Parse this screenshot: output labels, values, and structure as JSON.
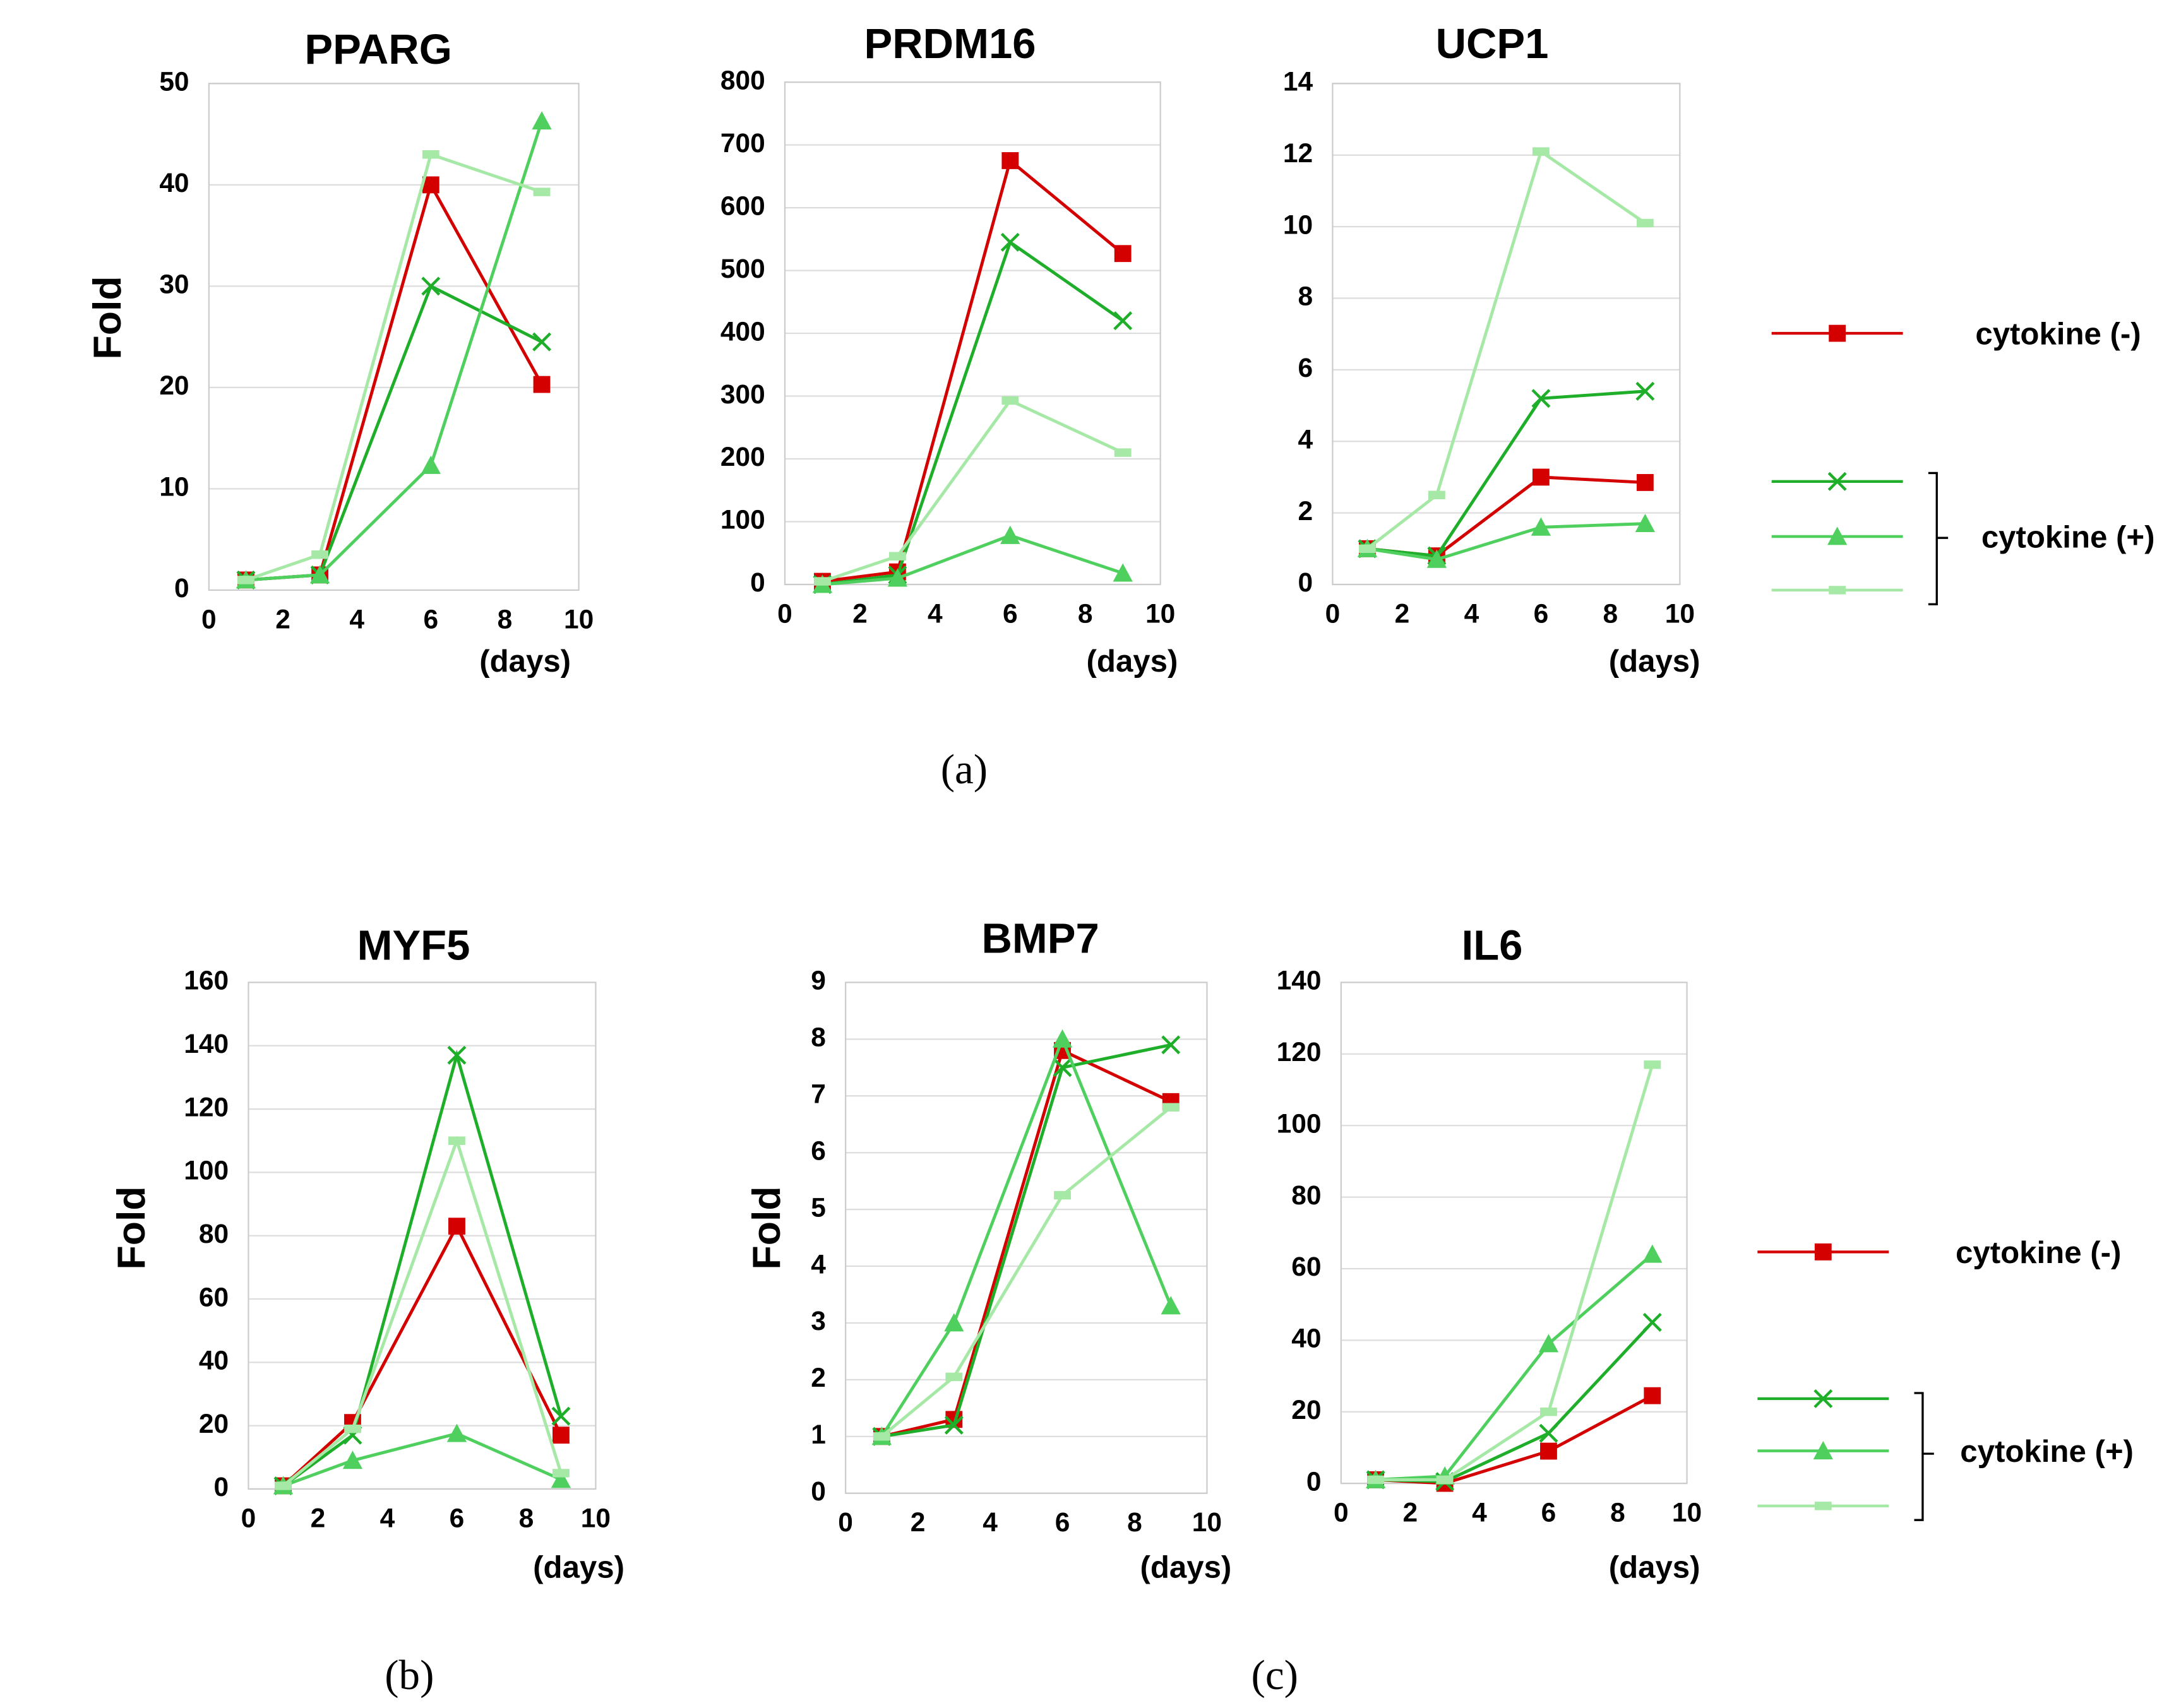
{
  "chart_data": [
    {
      "type": "line",
      "title": "PPARG",
      "ylabel": "Fold",
      "xlabel": "(days)",
      "x": [
        1,
        3,
        6,
        9
      ],
      "xlim": [
        0,
        10
      ],
      "xticks": [
        0,
        2,
        4,
        6,
        8,
        10
      ],
      "ylim": [
        0,
        50
      ],
      "yticks": [
        0,
        10,
        20,
        30,
        40,
        50
      ],
      "grid": true,
      "series": [
        {
          "color": "#d40000",
          "marker": "square",
          "values": [
            1,
            1.5,
            40,
            20.3
          ]
        },
        {
          "color": "#1fae2a",
          "marker": "x",
          "values": [
            1,
            1.5,
            30,
            24.5
          ]
        },
        {
          "color": "#4fd05e",
          "marker": "triangle",
          "values": [
            1,
            1.5,
            12.3,
            46.3
          ]
        },
        {
          "color": "#a6e8a6",
          "marker": "dash",
          "values": [
            1,
            3.5,
            43,
            39.3
          ]
        }
      ]
    },
    {
      "type": "line",
      "title": "PRDM16",
      "xlabel": "(days)",
      "x": [
        1,
        3,
        6,
        9
      ],
      "xlim": [
        0,
        10
      ],
      "xticks": [
        0,
        2,
        4,
        6,
        8,
        10
      ],
      "ylim": [
        0,
        800
      ],
      "yticks": [
        0,
        100,
        200,
        300,
        400,
        500,
        600,
        700,
        800
      ],
      "grid": true,
      "series": [
        {
          "color": "#d40000",
          "marker": "square",
          "values": [
            5,
            20,
            675,
            527
          ]
        },
        {
          "color": "#1fae2a",
          "marker": "x",
          "values": [
            0,
            15,
            545,
            420
          ]
        },
        {
          "color": "#4fd05e",
          "marker": "triangle",
          "values": [
            0,
            10,
            78,
            18
          ]
        },
        {
          "color": "#a6e8a6",
          "marker": "dash",
          "values": [
            5,
            45,
            293,
            210
          ]
        }
      ]
    },
    {
      "type": "line",
      "title": "UCP1",
      "xlabel": "(days)",
      "x": [
        1,
        3,
        6,
        9
      ],
      "xlim": [
        0,
        10
      ],
      "xticks": [
        0,
        2,
        4,
        6,
        8,
        10
      ],
      "ylim": [
        0,
        14
      ],
      "yticks": [
        0,
        2,
        4,
        6,
        8,
        10,
        12,
        14
      ],
      "grid": true,
      "series": [
        {
          "color": "#d40000",
          "marker": "square",
          "values": [
            1,
            0.8,
            3,
            2.85
          ]
        },
        {
          "color": "#1fae2a",
          "marker": "x",
          "values": [
            1,
            0.8,
            5.2,
            5.4
          ]
        },
        {
          "color": "#4fd05e",
          "marker": "triangle",
          "values": [
            1,
            0.7,
            1.6,
            1.7
          ]
        },
        {
          "color": "#a6e8a6",
          "marker": "dash",
          "values": [
            1,
            2.5,
            12.1,
            10.1
          ]
        }
      ]
    },
    {
      "type": "line",
      "title": "MYF5",
      "ylabel": "Fold",
      "xlabel": "(days)",
      "x": [
        1,
        3,
        6,
        9
      ],
      "xlim": [
        0,
        10
      ],
      "xticks": [
        0,
        2,
        4,
        6,
        8,
        10
      ],
      "ylim": [
        0,
        160
      ],
      "yticks": [
        0,
        20,
        40,
        60,
        80,
        100,
        120,
        140,
        160
      ],
      "grid": true,
      "series": [
        {
          "color": "#d40000",
          "marker": "square",
          "values": [
            1,
            21,
            83,
            17
          ]
        },
        {
          "color": "#1fae2a",
          "marker": "x",
          "values": [
            1,
            17,
            137,
            23
          ]
        },
        {
          "color": "#4fd05e",
          "marker": "triangle",
          "values": [
            1,
            9,
            17.5,
            3
          ]
        },
        {
          "color": "#a6e8a6",
          "marker": "dash",
          "values": [
            1,
            19,
            110,
            5
          ]
        }
      ]
    },
    {
      "type": "line",
      "title": "BMP7",
      "ylabel": "Fold",
      "xlabel": "(days)",
      "x": [
        1,
        3,
        6,
        9
      ],
      "xlim": [
        0,
        10
      ],
      "xticks": [
        0,
        2,
        4,
        6,
        8,
        10
      ],
      "ylim": [
        0,
        9
      ],
      "yticks": [
        0,
        1,
        2,
        3,
        4,
        5,
        6,
        7,
        8,
        9
      ],
      "grid": true,
      "series": [
        {
          "color": "#d40000",
          "marker": "square",
          "values": [
            1,
            1.3,
            7.8,
            6.9
          ]
        },
        {
          "color": "#1fae2a",
          "marker": "x",
          "values": [
            1,
            1.2,
            7.5,
            7.9
          ]
        },
        {
          "color": "#4fd05e",
          "marker": "triangle",
          "values": [
            1,
            3,
            8,
            3.3
          ]
        },
        {
          "color": "#a6e8a6",
          "marker": "dash",
          "values": [
            1,
            2.05,
            5.25,
            6.8
          ]
        }
      ]
    },
    {
      "type": "line",
      "title": "IL6",
      "xlabel": "(days)",
      "x": [
        1,
        3,
        6,
        9
      ],
      "xlim": [
        0,
        10
      ],
      "xticks": [
        0,
        2,
        4,
        6,
        8,
        10
      ],
      "ylim": [
        0,
        140
      ],
      "yticks": [
        0,
        20,
        40,
        60,
        80,
        100,
        120,
        140
      ],
      "grid": true,
      "series": [
        {
          "color": "#d40000",
          "marker": "square",
          "values": [
            1,
            0,
            9,
            24.5
          ]
        },
        {
          "color": "#1fae2a",
          "marker": "x",
          "values": [
            1,
            0.5,
            14,
            45
          ]
        },
        {
          "color": "#4fd05e",
          "marker": "triangle",
          "values": [
            1,
            2,
            39,
            64
          ]
        },
        {
          "color": "#a6e8a6",
          "marker": "dash",
          "values": [
            1,
            1,
            20,
            117
          ]
        }
      ]
    }
  ],
  "legends": [
    {
      "minus": "cytokine (-)",
      "plus": "cytokine (+)"
    },
    {
      "minus": "cytokine (-)",
      "plus": "cytokine (+)"
    }
  ],
  "panel_labels": [
    "(a)",
    "(b)",
    "(c)"
  ]
}
